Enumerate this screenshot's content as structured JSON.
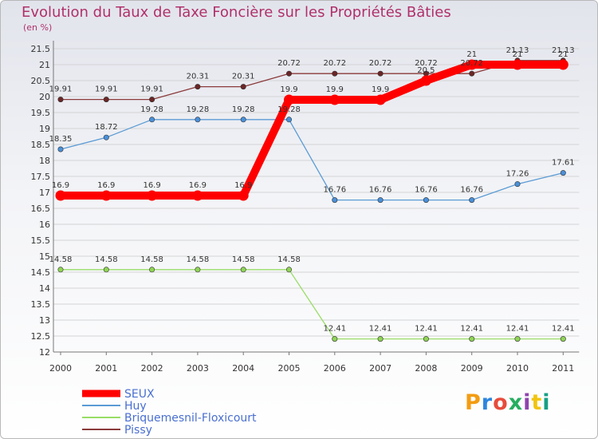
{
  "chart_data": {
    "type": "line",
    "title": "Evolution du Taux de Taxe Foncière sur les Propriétés Bâties",
    "ylabel": "(en %)",
    "x": [
      "2000",
      "2001",
      "2002",
      "2003",
      "2004",
      "2005",
      "2006",
      "2007",
      "2008",
      "2009",
      "2010",
      "2011"
    ],
    "ylim": [
      12,
      21.5
    ],
    "yticks": [
      "21.5",
      "21",
      "20.5",
      "20",
      "19.5",
      "19",
      "18.5",
      "18",
      "17.5",
      "17",
      "16.5",
      "16",
      "15.5",
      "15",
      "14.5",
      "14",
      "13.5",
      "13",
      "12.5",
      "12"
    ],
    "series": [
      {
        "name": "SEUX",
        "color": "#ff0000",
        "values": [
          16.9,
          16.9,
          16.9,
          16.9,
          16.9,
          19.9,
          19.9,
          19.9,
          20.5,
          21,
          21,
          21
        ],
        "labels": [
          "16.9",
          "16.9",
          "16.9",
          "16.9",
          "16.9",
          "19.9",
          "19.9",
          "19.9",
          "20.5",
          "21",
          "21",
          "21"
        ]
      },
      {
        "name": "Huy",
        "color": "#5b9bd5",
        "values": [
          18.35,
          18.72,
          19.28,
          19.28,
          19.28,
          19.28,
          16.76,
          16.76,
          16.76,
          16.76,
          17.26,
          17.61
        ],
        "labels": [
          "18.35",
          "18.72",
          "19.28",
          "19.28",
          "19.28",
          "19.28",
          "16.76",
          "16.76",
          "16.76",
          "16.76",
          "17.26",
          "17.61"
        ]
      },
      {
        "name": "Briquemesnil-Floxicourt",
        "color": "#99dd66",
        "values": [
          14.58,
          14.58,
          14.58,
          14.58,
          14.58,
          14.58,
          12.41,
          12.41,
          12.41,
          12.41,
          12.41,
          12.41
        ],
        "labels": [
          "14.58",
          "14.58",
          "14.58",
          "14.58",
          "14.58",
          "14.58",
          "12.41",
          "12.41",
          "12.41",
          "12.41",
          "12.41",
          "12.41"
        ]
      },
      {
        "name": "Pissy",
        "color": "#8b3a3a",
        "values": [
          19.91,
          19.91,
          19.91,
          20.31,
          20.31,
          20.72,
          20.72,
          20.72,
          20.72,
          20.72,
          21.13,
          21.13
        ],
        "labels": [
          "19.91",
          "19.91",
          "19.91",
          "20.31",
          "20.31",
          "20.72",
          "20.72",
          "20.72",
          "20.72",
          "20.72",
          "21.13",
          "21.13"
        ]
      }
    ]
  },
  "logo": {
    "text": "Proxiti"
  }
}
